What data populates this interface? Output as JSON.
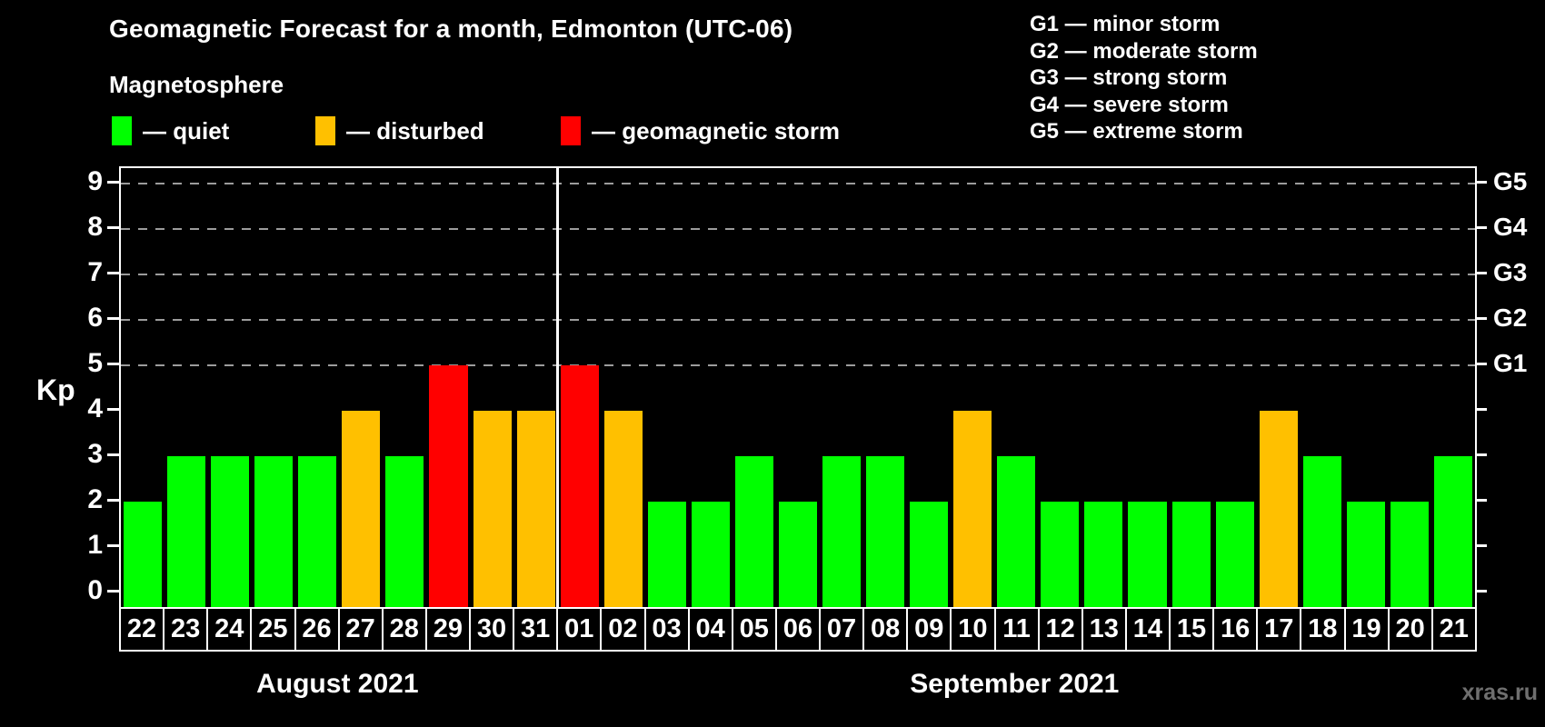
{
  "title": "Geomagnetic Forecast for a month, Edmonton (UTC-06)",
  "subtitle": "Magnetosphere",
  "legend": {
    "items": [
      {
        "name": "quiet",
        "label": "— quiet",
        "color": "#00ff00"
      },
      {
        "name": "disturbed",
        "label": "— disturbed",
        "color": "#ffc000"
      },
      {
        "name": "storm",
        "label": "— geomagnetic storm",
        "color": "#ff0000"
      }
    ]
  },
  "g_scale_legend": [
    {
      "label": "G1 — minor storm"
    },
    {
      "label": "G2 — moderate storm"
    },
    {
      "label": "G3 — strong storm"
    },
    {
      "label": "G4 — severe storm"
    },
    {
      "label": "G5 — extreme storm"
    }
  ],
  "watermark": "xras.ru",
  "colors": {
    "background": "#000000",
    "text": "#ffffff",
    "quiet": "#00ff00",
    "disturbed": "#ffc000",
    "storm": "#ff0000",
    "gridline": "#9c9c9c",
    "watermark": "#6f6f6f"
  },
  "chart_data": {
    "type": "bar",
    "title": "Geomagnetic Forecast for a month, Edmonton (UTC-06)",
    "xlabel": "",
    "ylabel": "Kp",
    "ylim": [
      0,
      9
    ],
    "yticks": [
      0,
      1,
      2,
      3,
      4,
      5,
      6,
      7,
      8,
      9
    ],
    "grid": "dashed horizontal at Kp 5-9",
    "gridlines_at": [
      5,
      6,
      7,
      8,
      9
    ],
    "right_axis": [
      {
        "kp": 5,
        "label": "G1"
      },
      {
        "kp": 6,
        "label": "G2"
      },
      {
        "kp": 7,
        "label": "G3"
      },
      {
        "kp": 8,
        "label": "G4"
      },
      {
        "kp": 9,
        "label": "G5"
      }
    ],
    "months": [
      {
        "label": "August 2021",
        "days": 10
      },
      {
        "label": "September 2021",
        "days": 21
      }
    ],
    "bars": [
      {
        "day": "22",
        "value": 2,
        "status": "quiet"
      },
      {
        "day": "23",
        "value": 3,
        "status": "quiet"
      },
      {
        "day": "24",
        "value": 3,
        "status": "quiet"
      },
      {
        "day": "25",
        "value": 3,
        "status": "quiet"
      },
      {
        "day": "26",
        "value": 3,
        "status": "quiet"
      },
      {
        "day": "27",
        "value": 4,
        "status": "disturbed"
      },
      {
        "day": "28",
        "value": 3,
        "status": "quiet"
      },
      {
        "day": "29",
        "value": 5,
        "status": "storm"
      },
      {
        "day": "30",
        "value": 4,
        "status": "disturbed"
      },
      {
        "day": "31",
        "value": 4,
        "status": "disturbed"
      },
      {
        "day": "01",
        "value": 5,
        "status": "storm"
      },
      {
        "day": "02",
        "value": 4,
        "status": "disturbed"
      },
      {
        "day": "03",
        "value": 2,
        "status": "quiet"
      },
      {
        "day": "04",
        "value": 2,
        "status": "quiet"
      },
      {
        "day": "05",
        "value": 3,
        "status": "quiet"
      },
      {
        "day": "06",
        "value": 2,
        "status": "quiet"
      },
      {
        "day": "07",
        "value": 3,
        "status": "quiet"
      },
      {
        "day": "08",
        "value": 3,
        "status": "quiet"
      },
      {
        "day": "09",
        "value": 2,
        "status": "quiet"
      },
      {
        "day": "10",
        "value": 4,
        "status": "disturbed"
      },
      {
        "day": "11",
        "value": 3,
        "status": "quiet"
      },
      {
        "day": "12",
        "value": 2,
        "status": "quiet"
      },
      {
        "day": "13",
        "value": 2,
        "status": "quiet"
      },
      {
        "day": "14",
        "value": 2,
        "status": "quiet"
      },
      {
        "day": "15",
        "value": 2,
        "status": "quiet"
      },
      {
        "day": "16",
        "value": 2,
        "status": "quiet"
      },
      {
        "day": "17",
        "value": 4,
        "status": "disturbed"
      },
      {
        "day": "18",
        "value": 3,
        "status": "quiet"
      },
      {
        "day": "19",
        "value": 2,
        "status": "quiet"
      },
      {
        "day": "20",
        "value": 2,
        "status": "quiet"
      },
      {
        "day": "21",
        "value": 3,
        "status": "quiet"
      }
    ]
  }
}
